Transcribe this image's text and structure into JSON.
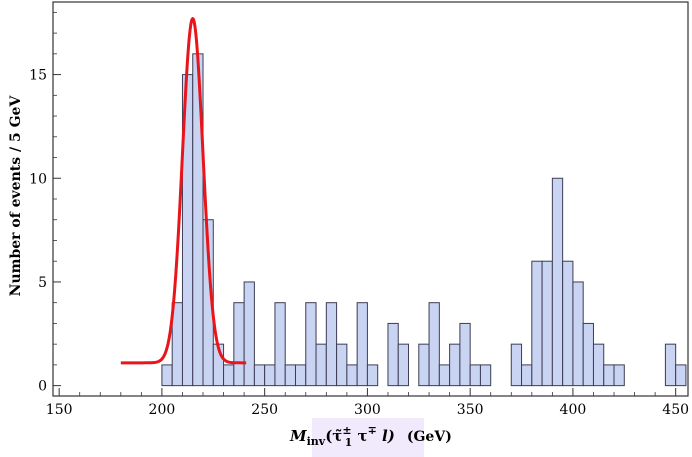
{
  "chart_data": {
    "type": "bar",
    "bin_width": 5,
    "bin_left_edges": [
      200,
      205,
      210,
      215,
      220,
      225,
      230,
      235,
      240,
      245,
      250,
      255,
      260,
      265,
      270,
      275,
      280,
      285,
      290,
      295,
      300,
      305,
      310,
      315,
      320,
      325,
      330,
      335,
      340,
      345,
      350,
      355,
      360,
      365,
      370,
      375,
      380,
      385,
      390,
      395,
      400,
      405,
      410,
      415,
      420,
      425,
      430,
      435,
      440,
      445,
      450
    ],
    "values": [
      1,
      4,
      15,
      16,
      8,
      2,
      1,
      4,
      5,
      1,
      1,
      4,
      1,
      1,
      4,
      2,
      4,
      2,
      1,
      4,
      1,
      0,
      3,
      2,
      0,
      2,
      4,
      1,
      2,
      3,
      1,
      1,
      0,
      0,
      2,
      1,
      6,
      6,
      10,
      6,
      5,
      3,
      2,
      1,
      1,
      0,
      0,
      0,
      0,
      2,
      1
    ],
    "fit_curve": {
      "type": "gaussian",
      "baseline": 1.1,
      "amplitude": 16.6,
      "mean": 215,
      "sigma": 5,
      "x_range": [
        180,
        241
      ]
    },
    "xlabel": {
      "main": "M",
      "sub": "inv",
      "expr": "(τ̃",
      "expr_sup": "±",
      "expr_sub": "1",
      "expr_rest": " τ",
      "expr_rest_sup": "∓",
      "expr_tail": " l)",
      "unit": "(GeV)"
    },
    "ylabel": "Number of events / 5 GeV",
    "xlim": [
      147,
      456
    ],
    "ylim": [
      -0.5,
      18.5
    ],
    "xticks": [
      150,
      200,
      250,
      300,
      350,
      400,
      450
    ],
    "yticks": [
      0,
      5,
      10,
      15
    ],
    "grid": false,
    "colors": {
      "bar_fill": "#c9d3f2",
      "bar_stroke": "#3d3d55",
      "curve": "#e8161b",
      "axis": "#333333"
    }
  }
}
